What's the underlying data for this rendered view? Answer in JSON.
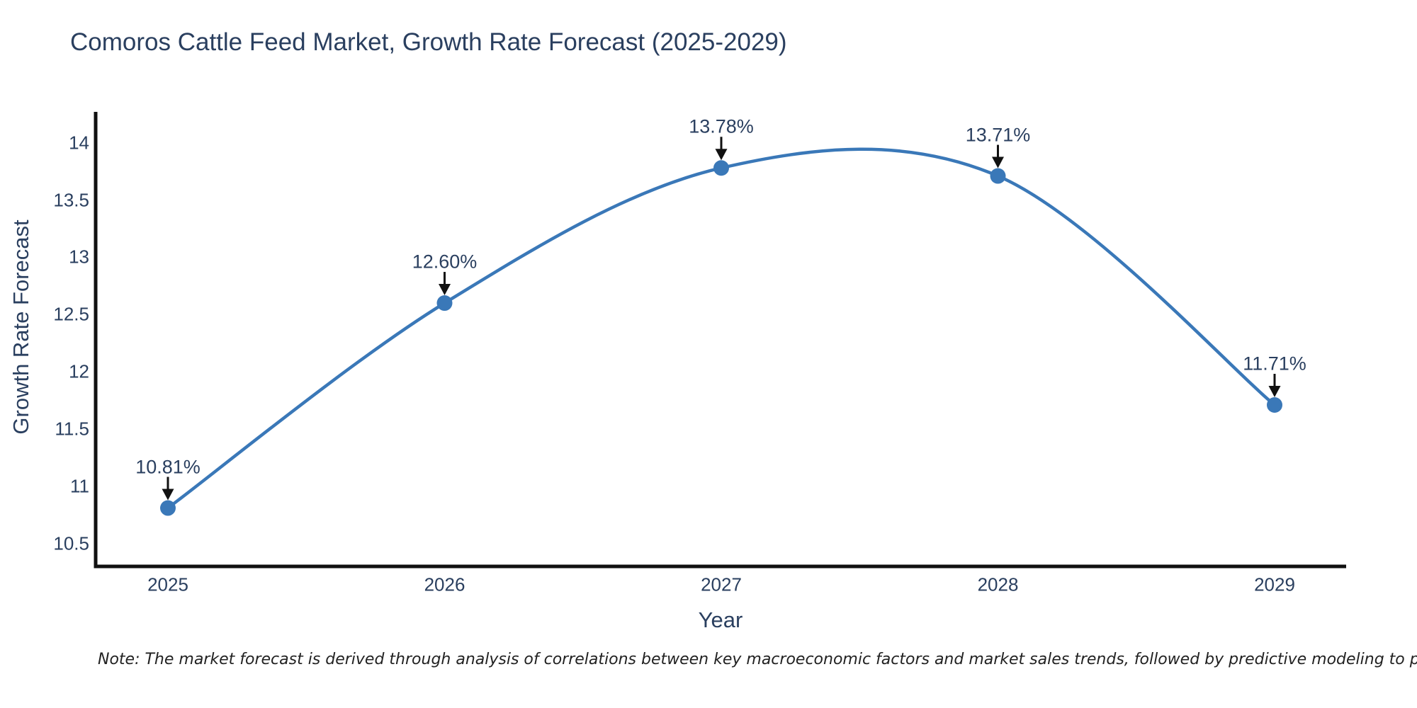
{
  "page": {
    "background": "#ffffff"
  },
  "chart_data": {
    "type": "line",
    "title": "Comoros Cattle Feed Market, Growth Rate Forecast (2025-2029)",
    "xlabel": "Year",
    "ylabel": "Growth Rate Forecast",
    "categories": [
      "2025",
      "2026",
      "2027",
      "2028",
      "2029"
    ],
    "values": [
      10.81,
      12.6,
      13.78,
      13.71,
      11.71
    ],
    "point_labels": [
      "10.81%",
      "12.60%",
      "13.78%",
      "13.71%",
      "11.71%"
    ],
    "yticks": [
      {
        "value": 10.5,
        "label": "10.5"
      },
      {
        "value": 11,
        "label": "11"
      },
      {
        "value": 11.5,
        "label": "11.5"
      },
      {
        "value": 12,
        "label": "12"
      },
      {
        "value": 12.5,
        "label": "12.5"
      },
      {
        "value": 13,
        "label": "13"
      },
      {
        "value": 13.5,
        "label": "13.5"
      },
      {
        "value": 14,
        "label": "14"
      }
    ],
    "ylim": [
      10.3,
      14.27
    ],
    "line_shape": "spline",
    "grid": false,
    "legend": "none",
    "colors": {
      "line": "#3a78b8",
      "marker": "#3a78b8",
      "axis": "#111111",
      "text": "#2a3f5f",
      "arrow": "#111111",
      "note": "#222222"
    },
    "note": "Note: The market forecast is derived through analysis of correlations between key macroeconomic factors and market sales trends, followed by predictive modeling to project future sal"
  }
}
